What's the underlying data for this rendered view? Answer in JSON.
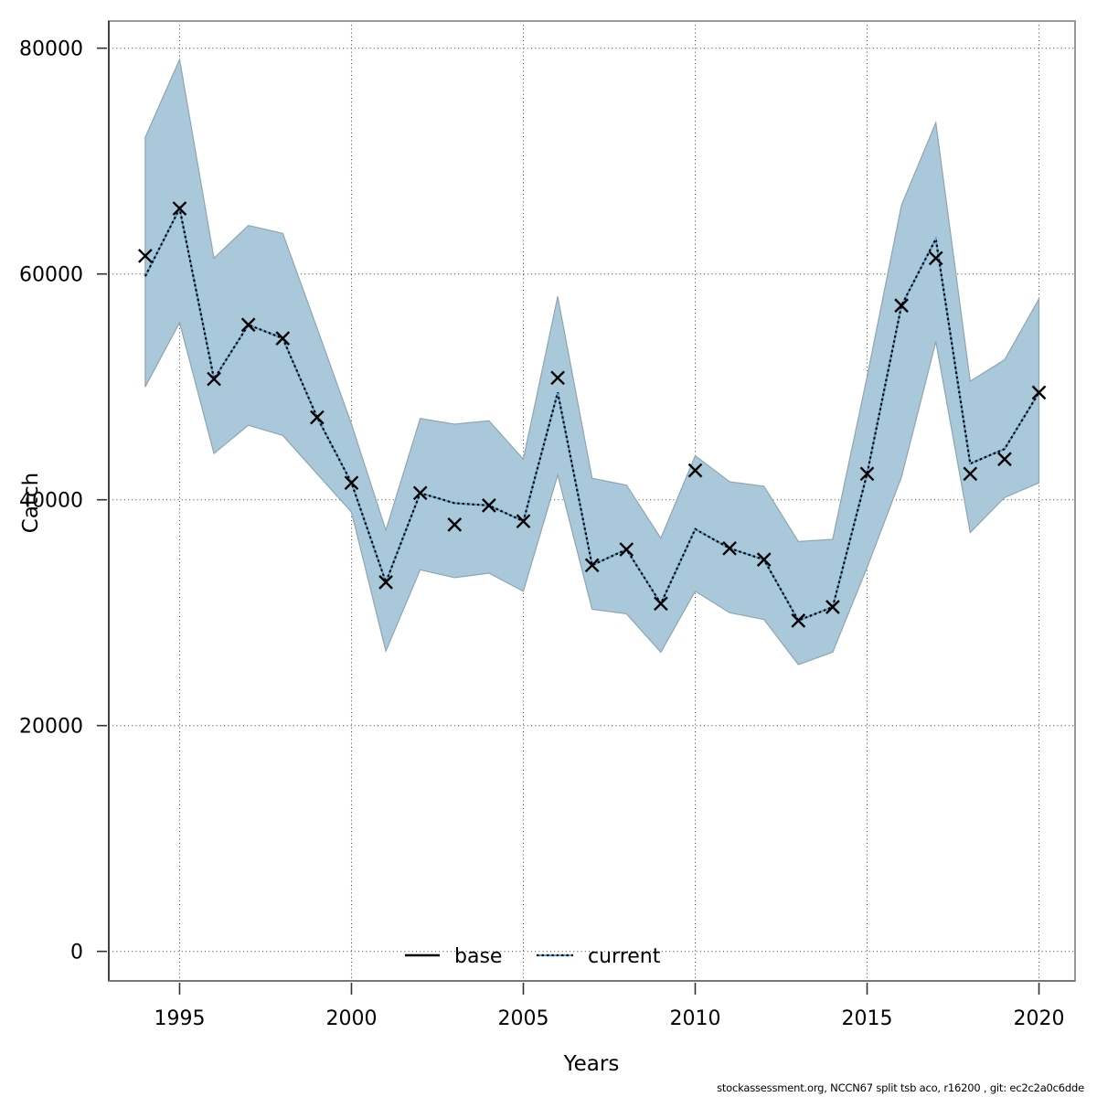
{
  "chart_data": {
    "type": "line",
    "title": "",
    "xlabel": "Years",
    "ylabel": "Catch",
    "x": [
      1994,
      1995,
      1996,
      1997,
      1998,
      1999,
      2000,
      2001,
      2002,
      2003,
      2004,
      2005,
      2006,
      2007,
      2008,
      2009,
      2010,
      2011,
      2012,
      2013,
      2014,
      2015,
      2016,
      2017,
      2018,
      2019,
      2020
    ],
    "xticks": [
      1995,
      2000,
      2005,
      2010,
      2015,
      2020
    ],
    "yticks": [
      0,
      20000,
      40000,
      60000,
      80000
    ],
    "ytick_labels": [
      "0",
      "20000",
      "40000",
      "60000",
      "80000"
    ],
    "xlim": [
      1992.94,
      2021.05
    ],
    "ylim": [
      -2615,
      82405
    ],
    "grid": true,
    "grid_style": "dotted",
    "legend_position": "bottom-center-inside",
    "series": [
      {
        "name": "base",
        "type": "line",
        "style": "solid-black-under-dotted",
        "color": "#000000",
        "values": [
          59800,
          65800,
          50700,
          55500,
          54300,
          47300,
          41500,
          32700,
          40600,
          39700,
          39500,
          38100,
          49500,
          34200,
          35600,
          30800,
          37400,
          35700,
          34700,
          29300,
          30500,
          42300,
          57200,
          63100,
          43200,
          44500,
          49500
        ]
      },
      {
        "name": "current",
        "type": "line",
        "style": "dotted",
        "color": "#5aa2d2",
        "band_color": "#a9c8da",
        "band_edge_color": "#90a5b0",
        "values": [
          59800,
          65800,
          50700,
          55500,
          54300,
          47300,
          41500,
          32700,
          40600,
          39700,
          39500,
          38100,
          49500,
          34200,
          35600,
          30800,
          37400,
          35700,
          34700,
          29300,
          30500,
          42300,
          57200,
          63100,
          43200,
          44500,
          49500
        ],
        "ci_lo": [
          50000,
          55700,
          44100,
          46600,
          45700,
          42300,
          38900,
          26600,
          33800,
          33100,
          33500,
          31900,
          42200,
          30300,
          29900,
          26500,
          31900,
          30000,
          29400,
          25400,
          26500,
          34000,
          42000,
          54000,
          37100,
          40200,
          41500
        ],
        "ci_hi": [
          72100,
          79000,
          61400,
          64300,
          63600,
          55200,
          46700,
          37300,
          47200,
          46700,
          47000,
          43600,
          58000,
          41900,
          41300,
          36600,
          43900,
          41600,
          41200,
          36300,
          36500,
          50900,
          66100,
          73400,
          50500,
          52400,
          57800
        ]
      },
      {
        "name": "observations",
        "type": "scatter",
        "marker": "x",
        "color": "#000000",
        "values": [
          61600,
          65800,
          50700,
          55500,
          54300,
          47300,
          41500,
          32700,
          40600,
          37800,
          39500,
          38100,
          50800,
          34200,
          35600,
          30800,
          42600,
          35700,
          34700,
          29300,
          30500,
          42300,
          57200,
          61400,
          42300,
          43600,
          49500
        ]
      }
    ]
  },
  "legend": {
    "items": [
      {
        "label": "base"
      },
      {
        "label": "current"
      }
    ]
  },
  "footer": {
    "credit": "stockassessment.org, NCCN67 split tsb aco, r16200 , git: ec2c2a0c6dde"
  }
}
